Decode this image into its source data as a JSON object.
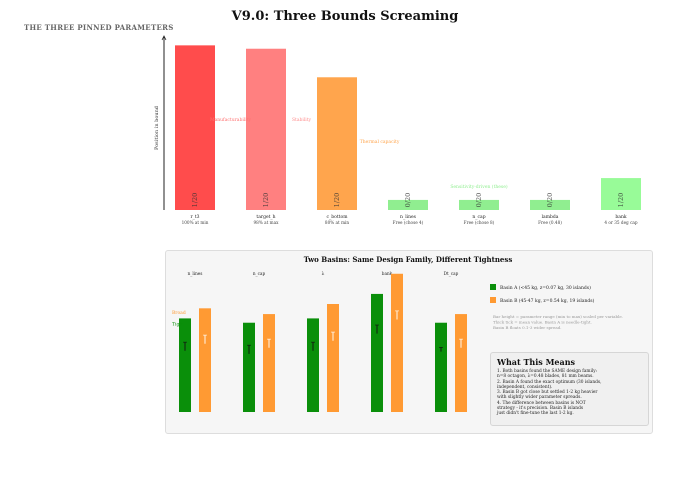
{
  "page": {
    "title": "V9.0: Three Bounds Screaming",
    "sidehead": "THE THREE PINNED PARAMETERS"
  },
  "chart_data": [
    {
      "type": "bar",
      "title": "",
      "xlabel": "",
      "ylabel": "Position in bound",
      "ylim": [
        0,
        1
      ],
      "categories": [
        "r_t3",
        "target_h",
        "c_bottom",
        "n_lines",
        "n_cap",
        "lambda",
        "bank"
      ],
      "sublabels": [
        "100% at min",
        "98% at max",
        "80% at min",
        "Free (chose 4)",
        "Free (chose 8)",
        "Free (0.48)",
        "4 or 35 deg cap"
      ],
      "values": [
        0.98,
        0.96,
        0.79,
        0.06,
        0.06,
        0.06,
        0.19
      ],
      "colors": [
        "#ff4c4c",
        "#ff8080",
        "#ffa54d",
        "#90ee90",
        "#90ee90",
        "#90ee90",
        "#98fb98"
      ],
      "bar_text": [
        "1/20",
        "1/20",
        "1/20",
        "0/20",
        "0/20",
        "0/20",
        "1/20"
      ],
      "annotations": [
        {
          "text": "Manufacturability",
          "color": "#ff7070",
          "bar": 0.5,
          "y": 0.53
        },
        {
          "text": "Stability",
          "color": "#ff8c8c",
          "bar": 1.5,
          "y": 0.53
        },
        {
          "text": "Thermal capacity",
          "color": "#ffa54d",
          "bar": 2.6,
          "y": 0.4
        },
        {
          "text": "Sensitivity-driven (these)",
          "color": "#90ee90",
          "bar": 4.0,
          "y": 0.13
        }
      ]
    },
    {
      "type": "bar",
      "title": "Two Basins: Same Design Family, Different Tightness",
      "categories": [
        "n_lines",
        "n_cap",
        "λ",
        "bank",
        "Dt_cap"
      ],
      "ylim": [
        0,
        1
      ],
      "series": [
        {
          "name": "Basin A (<45 kg, z=0.07 kg, 30 islands)",
          "color": "#0a8f0a",
          "values": [
            0.65,
            0.62,
            0.65,
            0.82,
            0.62
          ],
          "err": [
            0.06,
            0.06,
            0.06,
            0.06,
            0.03
          ]
        },
        {
          "name": "Basin B (45-47 kg, z=0.54 kg, 19 islands)",
          "color": "#ff9a33",
          "values": [
            0.72,
            0.68,
            0.75,
            0.96,
            0.68
          ],
          "err": [
            0.06,
            0.06,
            0.06,
            0.06,
            0.06
          ]
        }
      ],
      "ymarkers": [
        {
          "text": "Broad",
          "color": "#ff9a33",
          "y": 0.68
        },
        {
          "text": "Tight",
          "color": "#0a8f0a",
          "y": 0.6
        }
      ],
      "note": [
        "Bar height = parameter range (min to max) scaled per variable.",
        "Thick tick = mean value. Basin A is needle-tight.",
        "Basin B floats 0.1-3 wider spread."
      ]
    }
  ],
  "means": {
    "title": "What This Means",
    "items": [
      "1. Both basins found the SAME design family:",
      "n=8 octagon, λ=0.48 blades, 81 mm beams.",
      "2. Basin A found the exact optimum (30 islands,",
      "independent, consistent).",
      "3. Basin B got close but settled 1-2 kg heavier",
      "with slightly wider parameter spreads.",
      "4. The difference between basins is NOT",
      "strategy - it's precision. Basin B islands",
      "just didn't fine-tune the last 1-2 kg."
    ]
  }
}
